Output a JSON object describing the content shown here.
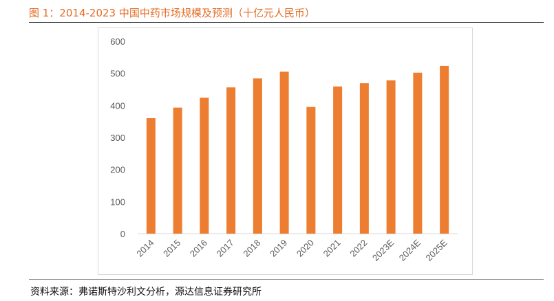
{
  "figure": {
    "title": "图 1：2014-2023 中国中药市场规模及预测（十亿元人民币）",
    "source": "资料来源：弗诺斯特沙利文分析，源达信息证券研究所"
  },
  "chart_data": {
    "type": "bar",
    "title": "",
    "xlabel": "",
    "ylabel": "",
    "categories": [
      "2014",
      "2015",
      "2016",
      "2017",
      "2018",
      "2019",
      "2020",
      "2021",
      "2022",
      "2023E",
      "2024E",
      "2025E"
    ],
    "values": [
      360,
      393,
      424,
      456,
      484,
      505,
      395,
      459,
      469,
      478,
      502,
      523
    ],
    "ylim": [
      0,
      600
    ],
    "yticks": [
      0,
      100,
      200,
      300,
      400,
      500,
      600
    ],
    "grid": false,
    "legend": "none",
    "bar_color": "#ed7d31"
  }
}
